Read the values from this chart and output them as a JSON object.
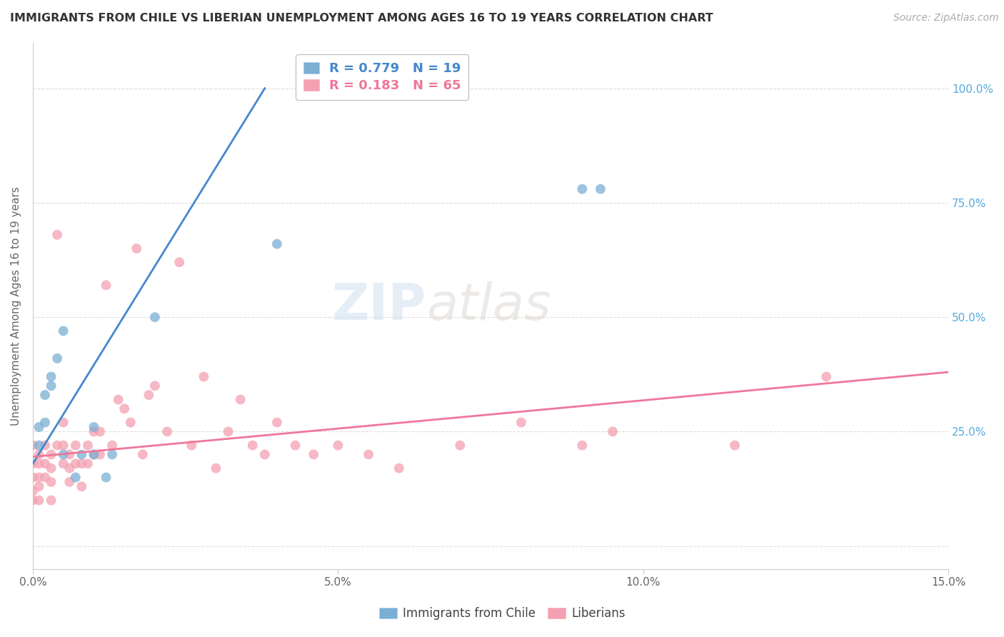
{
  "title": "IMMIGRANTS FROM CHILE VS LIBERIAN UNEMPLOYMENT AMONG AGES 16 TO 19 YEARS CORRELATION CHART",
  "source": "Source: ZipAtlas.com",
  "ylabel": "Unemployment Among Ages 16 to 19 years",
  "xlim": [
    0.0,
    0.15
  ],
  "ylim": [
    -0.05,
    1.1
  ],
  "xticks": [
    0.0,
    0.05,
    0.1,
    0.15
  ],
  "xtick_labels": [
    "0.0%",
    "5.0%",
    "10.0%",
    "15.0%"
  ],
  "yticks": [
    0.0,
    0.25,
    0.5,
    0.75,
    1.0
  ],
  "ytick_labels_right": [
    "",
    "25.0%",
    "50.0%",
    "75.0%",
    "100.0%"
  ],
  "blue_R": 0.779,
  "blue_N": 19,
  "pink_R": 0.183,
  "pink_N": 65,
  "blue_color": "#7BAFD4",
  "pink_color": "#F4A0B0",
  "blue_line_color": "#4488CC",
  "pink_line_color": "#EE7799",
  "legend_blue_label": "Immigrants from Chile",
  "legend_pink_label": "Liberians",
  "watermark": "ZIPatlas",
  "blue_scatter_x": [
    0.001,
    0.001,
    0.002,
    0.002,
    0.003,
    0.003,
    0.004,
    0.005,
    0.005,
    0.007,
    0.008,
    0.01,
    0.01,
    0.012,
    0.013,
    0.02,
    0.04,
    0.09,
    0.093
  ],
  "blue_scatter_y": [
    0.22,
    0.26,
    0.27,
    0.33,
    0.35,
    0.37,
    0.41,
    0.47,
    0.2,
    0.15,
    0.2,
    0.26,
    0.2,
    0.15,
    0.2,
    0.5,
    0.66,
    0.78,
    0.78
  ],
  "blue_line_x0": 0.0,
  "blue_line_y0": 0.18,
  "blue_line_x1": 0.038,
  "blue_line_y1": 1.0,
  "pink_line_x0": 0.0,
  "pink_line_y0": 0.195,
  "pink_line_x1": 0.15,
  "pink_line_y1": 0.38,
  "pink_scatter_x": [
    0.0,
    0.0,
    0.0,
    0.0,
    0.0,
    0.001,
    0.001,
    0.001,
    0.001,
    0.001,
    0.002,
    0.002,
    0.002,
    0.003,
    0.003,
    0.003,
    0.003,
    0.004,
    0.004,
    0.005,
    0.005,
    0.005,
    0.006,
    0.006,
    0.006,
    0.007,
    0.007,
    0.008,
    0.008,
    0.009,
    0.009,
    0.01,
    0.01,
    0.011,
    0.011,
    0.012,
    0.013,
    0.014,
    0.015,
    0.016,
    0.017,
    0.018,
    0.019,
    0.02,
    0.022,
    0.024,
    0.026,
    0.028,
    0.03,
    0.032,
    0.034,
    0.036,
    0.038,
    0.04,
    0.043,
    0.046,
    0.05,
    0.055,
    0.06,
    0.07,
    0.08,
    0.09,
    0.095,
    0.115,
    0.13
  ],
  "pink_scatter_y": [
    0.22,
    0.18,
    0.15,
    0.12,
    0.1,
    0.2,
    0.18,
    0.15,
    0.13,
    0.1,
    0.22,
    0.18,
    0.15,
    0.2,
    0.17,
    0.14,
    0.1,
    0.68,
    0.22,
    0.27,
    0.22,
    0.18,
    0.2,
    0.17,
    0.14,
    0.22,
    0.18,
    0.18,
    0.13,
    0.22,
    0.18,
    0.25,
    0.2,
    0.25,
    0.2,
    0.57,
    0.22,
    0.32,
    0.3,
    0.27,
    0.65,
    0.2,
    0.33,
    0.35,
    0.25,
    0.62,
    0.22,
    0.37,
    0.17,
    0.25,
    0.32,
    0.22,
    0.2,
    0.27,
    0.22,
    0.2,
    0.22,
    0.2,
    0.17,
    0.22,
    0.27,
    0.22,
    0.25,
    0.22,
    0.37
  ],
  "background_color": "#ffffff",
  "grid_color": "#dddddd"
}
